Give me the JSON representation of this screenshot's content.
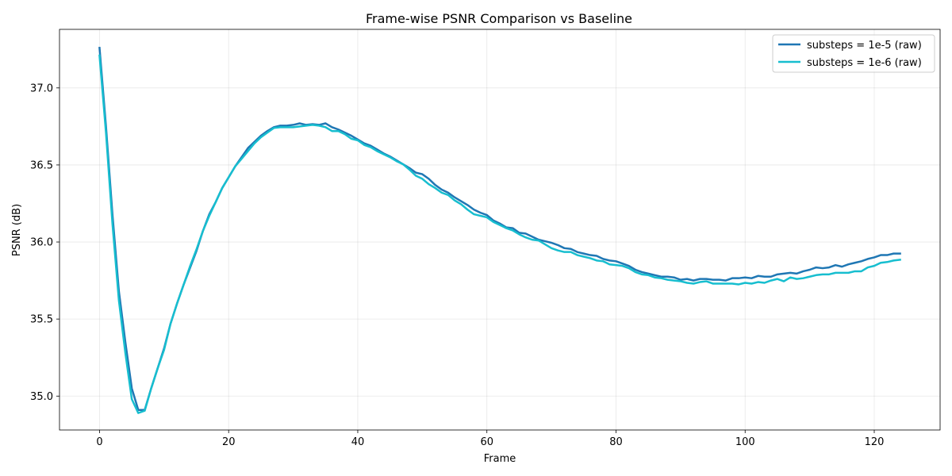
{
  "chart_data": {
    "type": "line",
    "title": "Frame-wise PSNR Comparison vs Baseline",
    "xlabel": "Frame",
    "ylabel": "PSNR (dB)",
    "xlim": [
      -6.2,
      130.2
    ],
    "ylim": [
      34.78,
      37.38
    ],
    "xticks": [
      0,
      20,
      40,
      60,
      80,
      100,
      120
    ],
    "yticks": [
      35.0,
      35.5,
      36.0,
      36.5,
      37.0
    ],
    "ytick_labels": [
      "35.0",
      "35.5",
      "36.0",
      "36.5",
      "37.0"
    ],
    "grid": true,
    "legend_position": "top-right",
    "series": [
      {
        "name": "substeps = 1e-5 (raw)",
        "color": "#1f77b4",
        "x": [
          0,
          1,
          2,
          3,
          4,
          5,
          6,
          7,
          8,
          9,
          10,
          11,
          12,
          13,
          14,
          15,
          16,
          17,
          18,
          19,
          20,
          21,
          22,
          23,
          24,
          25,
          26,
          27,
          28,
          29,
          30,
          31,
          32,
          33,
          34,
          35,
          36,
          37,
          38,
          39,
          40,
          41,
          42,
          43,
          44,
          45,
          46,
          47,
          48,
          49,
          50,
          51,
          52,
          53,
          54,
          55,
          56,
          57,
          58,
          59,
          60,
          61,
          62,
          63,
          64,
          65,
          66,
          67,
          68,
          69,
          70,
          71,
          72,
          73,
          74,
          75,
          76,
          77,
          78,
          79,
          80,
          81,
          82,
          83,
          84,
          85,
          86,
          87,
          88,
          89,
          90,
          91,
          92,
          93,
          94,
          95,
          96,
          97,
          98,
          99,
          100,
          101,
          102,
          103,
          104,
          105,
          106,
          107,
          108,
          109,
          110,
          111,
          112,
          113,
          114,
          115,
          116,
          117,
          118,
          119,
          120,
          121,
          122,
          123,
          124
        ],
        "y": [
          37.26,
          36.75,
          36.18,
          35.68,
          35.35,
          35.05,
          34.91,
          34.91,
          35.05,
          35.18,
          35.31,
          35.47,
          35.6,
          35.72,
          35.83,
          35.94,
          36.07,
          36.18,
          36.26,
          36.35,
          36.42,
          36.49,
          36.55,
          36.61,
          36.65,
          36.69,
          36.72,
          36.745,
          36.755,
          36.755,
          36.76,
          36.77,
          36.76,
          36.765,
          36.76,
          36.77,
          36.745,
          36.73,
          36.71,
          36.69,
          36.665,
          36.64,
          36.625,
          36.6,
          36.575,
          36.555,
          36.53,
          36.505,
          36.48,
          36.45,
          36.44,
          36.41,
          36.37,
          36.34,
          36.32,
          36.29,
          36.265,
          36.24,
          36.21,
          36.19,
          36.175,
          36.14,
          36.12,
          36.095,
          36.09,
          36.06,
          36.055,
          36.035,
          36.015,
          36.005,
          35.995,
          35.98,
          35.96,
          35.955,
          35.935,
          35.925,
          35.915,
          35.91,
          35.89,
          35.88,
          35.875,
          35.86,
          35.845,
          35.82,
          35.805,
          35.795,
          35.785,
          35.775,
          35.775,
          35.77,
          35.755,
          35.76,
          35.75,
          35.76,
          35.76,
          35.755,
          35.755,
          35.75,
          35.765,
          35.765,
          35.77,
          35.765,
          35.78,
          35.775,
          35.775,
          35.79,
          35.795,
          35.8,
          35.795,
          35.81,
          35.82,
          35.835,
          35.83,
          35.835,
          35.85,
          35.84,
          35.855,
          35.865,
          35.875,
          35.89,
          35.9,
          35.915,
          35.915,
          35.925,
          35.925
        ]
      },
      {
        "name": "substeps = 1e-6 (raw)",
        "color": "#17becf",
        "x": [
          0,
          1,
          2,
          3,
          4,
          5,
          6,
          7,
          8,
          9,
          10,
          11,
          12,
          13,
          14,
          15,
          16,
          17,
          18,
          19,
          20,
          21,
          22,
          23,
          24,
          25,
          26,
          27,
          28,
          29,
          30,
          31,
          32,
          33,
          34,
          35,
          36,
          37,
          38,
          39,
          40,
          41,
          42,
          43,
          44,
          45,
          46,
          47,
          48,
          49,
          50,
          51,
          52,
          53,
          54,
          55,
          56,
          57,
          58,
          59,
          60,
          61,
          62,
          63,
          64,
          65,
          66,
          67,
          68,
          69,
          70,
          71,
          72,
          73,
          74,
          75,
          76,
          77,
          78,
          79,
          80,
          81,
          82,
          83,
          84,
          85,
          86,
          87,
          88,
          89,
          90,
          91,
          92,
          93,
          94,
          95,
          96,
          97,
          98,
          99,
          100,
          101,
          102,
          103,
          104,
          105,
          106,
          107,
          108,
          109,
          110,
          111,
          112,
          113,
          114,
          115,
          116,
          117,
          118,
          119,
          120,
          121,
          122,
          123,
          124
        ],
        "y": [
          37.21,
          36.71,
          36.12,
          35.62,
          35.28,
          34.98,
          34.89,
          34.905,
          35.05,
          35.18,
          35.3,
          35.47,
          35.6,
          35.72,
          35.84,
          35.95,
          36.07,
          36.17,
          36.26,
          36.35,
          36.42,
          36.49,
          36.54,
          36.59,
          36.64,
          36.68,
          36.71,
          36.74,
          36.745,
          36.745,
          36.745,
          36.75,
          36.755,
          36.76,
          36.755,
          36.745,
          36.72,
          36.72,
          36.7,
          36.67,
          36.66,
          36.63,
          36.615,
          36.59,
          36.57,
          36.55,
          36.525,
          36.505,
          36.47,
          36.43,
          36.41,
          36.375,
          36.35,
          36.32,
          36.305,
          36.27,
          36.245,
          36.21,
          36.18,
          36.17,
          36.16,
          36.13,
          36.11,
          36.09,
          36.075,
          36.05,
          36.03,
          36.015,
          36.01,
          35.985,
          35.96,
          35.945,
          35.935,
          35.935,
          35.915,
          35.905,
          35.895,
          35.88,
          35.875,
          35.855,
          35.85,
          35.845,
          35.83,
          35.805,
          35.79,
          35.785,
          35.77,
          35.765,
          35.755,
          35.75,
          35.745,
          35.735,
          35.73,
          35.74,
          35.745,
          35.73,
          35.73,
          35.73,
          35.73,
          35.725,
          35.735,
          35.73,
          35.74,
          35.735,
          35.75,
          35.76,
          35.745,
          35.77,
          35.76,
          35.765,
          35.775,
          35.785,
          35.79,
          35.79,
          35.8,
          35.8,
          35.8,
          35.81,
          35.81,
          35.835,
          35.845,
          35.865,
          35.87,
          35.88,
          35.885
        ]
      }
    ]
  }
}
